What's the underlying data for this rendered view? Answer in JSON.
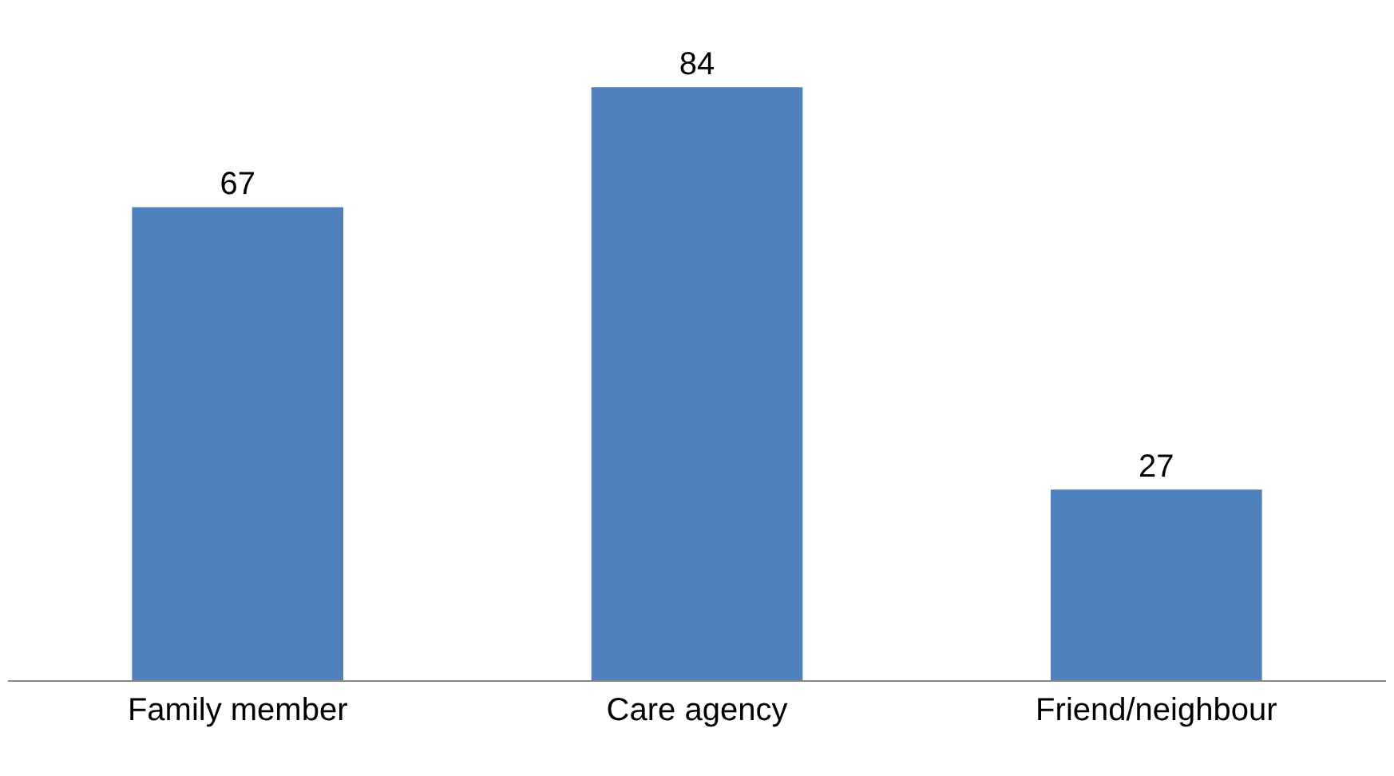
{
  "chart_data": {
    "type": "bar",
    "categories": [
      "Family member",
      "Care agency",
      "Friend/neighbour"
    ],
    "values": [
      67,
      84,
      27
    ],
    "color": "#4f81bd",
    "data_labels": true
  }
}
